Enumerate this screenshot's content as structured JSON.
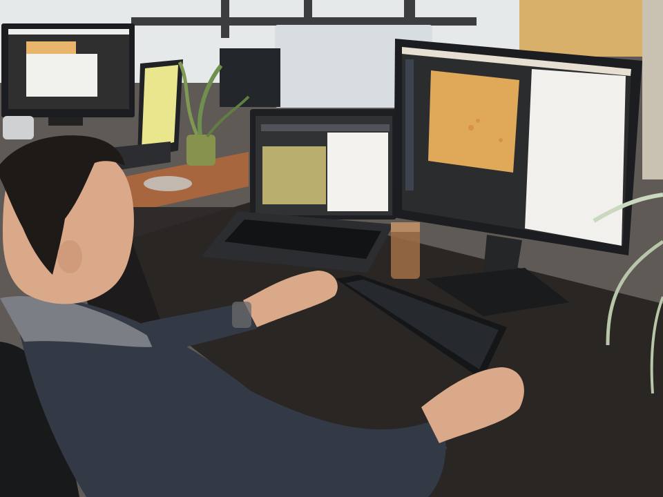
{
  "scene": {
    "description_free": true
  },
  "colors": {
    "wall": "#d9d6cf",
    "window": "#e9ecee",
    "desk_wood": "#a8663f",
    "desk_dark": "#2a2624",
    "monitor_bezel": "#1c1d20",
    "monitor_screen_dark": "#2b2c2e",
    "specimen_orange": "#e0a95a",
    "specimen_olive": "#b9ae6e",
    "panel_white": "#f3f2ee",
    "sweater": "#343a45",
    "hood_gray": "#7b7e84",
    "skin": "#d9a98a",
    "hair": "#1e1a18",
    "chair": "#18191b",
    "keyboard": "#151618",
    "drink": "#9a6d45",
    "plant": "#7e8f55",
    "cabinet": "#d8b06a"
  },
  "icons": [
    "monitor-icon",
    "laptop-icon",
    "keyboard-icon",
    "plant-icon"
  ]
}
